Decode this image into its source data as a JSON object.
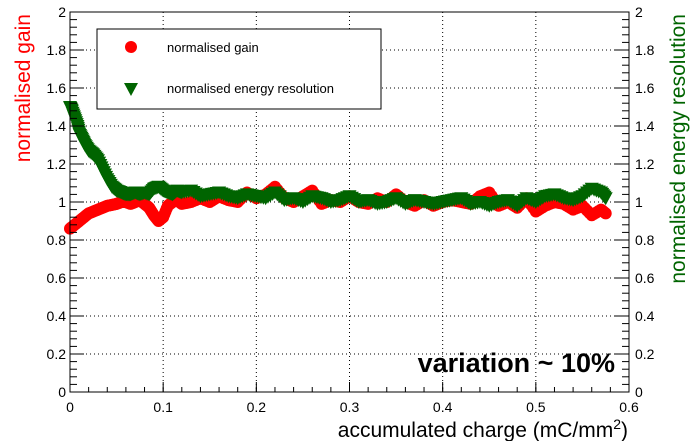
{
  "chart_data": {
    "type": "scatter",
    "xlabel": "accumulated charge (mC/mm",
    "xlabel_sup": "2",
    "xlabel_end": ")",
    "ylabel_left": "normalised gain",
    "ylabel_right": "normalised energy resolution",
    "xlim": [
      0,
      0.6
    ],
    "ylim": [
      0,
      2
    ],
    "xticks": [
      "0",
      "0.1",
      "0.2",
      "0.3",
      "0.4",
      "0.5",
      "0.6"
    ],
    "yticks": [
      "0",
      "0.2",
      "0.4",
      "0.6",
      "0.8",
      "1",
      "1.2",
      "1.4",
      "1.6",
      "1.8",
      "2"
    ],
    "grid": true,
    "legend_position": "top-left",
    "annotation": "variation ~ 10%",
    "colors": {
      "gain": "#ff0000",
      "resolution": "#006400",
      "left_axis_label": "#ff0000",
      "right_axis_label": "#006400"
    },
    "series": [
      {
        "name": "normalised gain",
        "marker": "circle",
        "color": "#ff0000",
        "x": [
          0.0,
          0.005,
          0.01,
          0.015,
          0.02,
          0.025,
          0.03,
          0.035,
          0.04,
          0.045,
          0.05,
          0.055,
          0.06,
          0.065,
          0.07,
          0.075,
          0.08,
          0.085,
          0.09,
          0.095,
          0.1,
          0.105,
          0.11,
          0.115,
          0.12,
          0.13,
          0.14,
          0.15,
          0.16,
          0.17,
          0.18,
          0.19,
          0.2,
          0.21,
          0.22,
          0.23,
          0.24,
          0.25,
          0.26,
          0.27,
          0.28,
          0.29,
          0.3,
          0.31,
          0.32,
          0.33,
          0.34,
          0.35,
          0.36,
          0.37,
          0.38,
          0.39,
          0.4,
          0.41,
          0.42,
          0.43,
          0.44,
          0.45,
          0.46,
          0.47,
          0.48,
          0.49,
          0.5,
          0.51,
          0.52,
          0.53,
          0.54,
          0.55,
          0.56,
          0.57,
          0.575
        ],
        "y": [
          0.86,
          0.88,
          0.9,
          0.92,
          0.94,
          0.95,
          0.96,
          0.97,
          0.98,
          0.985,
          0.99,
          1.0,
          1.0,
          0.99,
          1.0,
          1.01,
          0.99,
          0.97,
          0.93,
          0.9,
          0.92,
          0.98,
          1.0,
          1.01,
          0.99,
          1.0,
          1.02,
          1.0,
          1.03,
          1.01,
          1.0,
          1.05,
          1.02,
          1.04,
          1.08,
          1.02,
          1.0,
          1.03,
          1.06,
          0.99,
          1.01,
          1.0,
          1.03,
          1.0,
          0.99,
          1.02,
          1.0,
          1.04,
          1.0,
          0.98,
          1.01,
          0.98,
          1.0,
          1.01,
          1.0,
          0.99,
          1.03,
          1.05,
          0.98,
          1.0,
          0.97,
          1.02,
          0.95,
          0.98,
          1.0,
          0.99,
          0.96,
          0.98,
          0.93,
          0.96,
          0.94
        ]
      },
      {
        "name": "normalised energy resolution",
        "marker": "triangle-down",
        "color": "#006400",
        "x": [
          0.0,
          0.002,
          0.005,
          0.008,
          0.01,
          0.013,
          0.016,
          0.02,
          0.025,
          0.03,
          0.035,
          0.04,
          0.045,
          0.05,
          0.055,
          0.06,
          0.065,
          0.07,
          0.075,
          0.08,
          0.085,
          0.09,
          0.095,
          0.1,
          0.105,
          0.11,
          0.115,
          0.12,
          0.13,
          0.14,
          0.15,
          0.16,
          0.17,
          0.18,
          0.19,
          0.2,
          0.21,
          0.22,
          0.23,
          0.24,
          0.25,
          0.26,
          0.27,
          0.28,
          0.29,
          0.3,
          0.31,
          0.32,
          0.33,
          0.34,
          0.35,
          0.36,
          0.37,
          0.38,
          0.39,
          0.4,
          0.41,
          0.42,
          0.43,
          0.44,
          0.45,
          0.46,
          0.47,
          0.48,
          0.49,
          0.5,
          0.51,
          0.52,
          0.53,
          0.54,
          0.55,
          0.56,
          0.57,
          0.575
        ],
        "y": [
          1.5,
          1.48,
          1.44,
          1.4,
          1.36,
          1.33,
          1.3,
          1.27,
          1.25,
          1.22,
          1.17,
          1.12,
          1.08,
          1.06,
          1.05,
          1.04,
          1.04,
          1.05,
          1.04,
          1.05,
          1.04,
          1.07,
          1.08,
          1.06,
          1.05,
          1.04,
          1.06,
          1.05,
          1.06,
          1.03,
          1.04,
          1.05,
          1.03,
          1.02,
          1.04,
          1.03,
          1.02,
          1.05,
          1.01,
          1.02,
          1.0,
          1.03,
          1.02,
          1.0,
          1.01,
          1.03,
          1.0,
          1.01,
          0.99,
          1.0,
          1.02,
          0.99,
          1.01,
          1.0,
          0.99,
          1.0,
          1.01,
          1.02,
          0.99,
          1.0,
          0.98,
          1.0,
          1.01,
          0.98,
          1.02,
          1.0,
          1.03,
          1.04,
          1.02,
          1.01,
          1.03,
          1.07,
          1.05,
          1.02
        ]
      }
    ]
  }
}
